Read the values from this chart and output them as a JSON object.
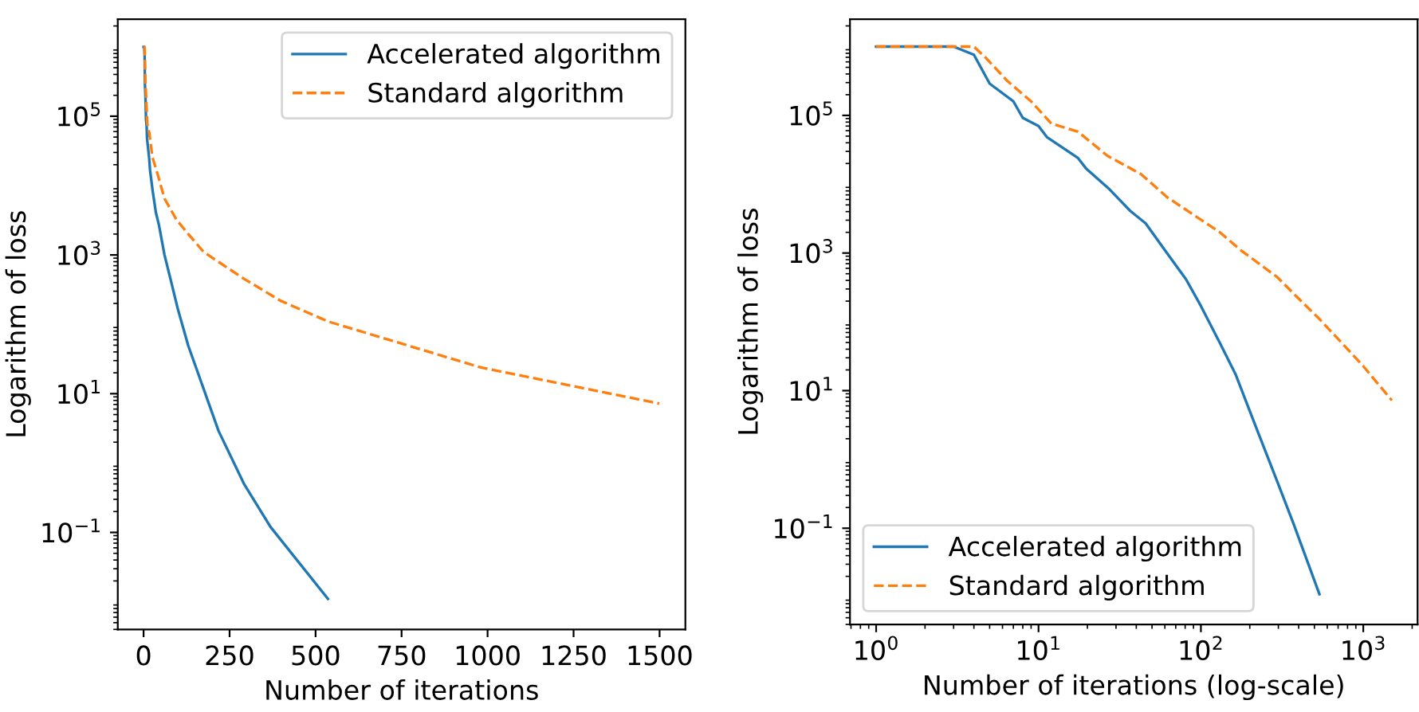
{
  "chart_data": [
    {
      "type": "line",
      "xlabel": "Number of iterations",
      "ylabel": "Logarithm of loss",
      "log": "y",
      "xlim": [
        -75,
        1575
      ],
      "ylim": [
        0.004,
        2500000.0
      ],
      "xticks": [
        0,
        250,
        500,
        750,
        1000,
        1250,
        1500
      ],
      "yticks": [
        {
          "value": 0.1,
          "label": "10$^{−1}$"
        },
        {
          "value": 10,
          "label": "10$^{1}$"
        },
        {
          "value": 1000,
          "label": "10$^{3}$"
        },
        {
          "value": 100000,
          "label": "10$^{5}$"
        }
      ],
      "legend": "top right",
      "grid": false,
      "series": [
        {
          "name": "Accelerated algorithm",
          "color": "#1f77b4",
          "line_style": "solid",
          "x": [
            0,
            1,
            2,
            3,
            4,
            6,
            7,
            9,
            10,
            16.5,
            18.6,
            26.4,
            35.7,
            44.7,
            60.8,
            80,
            99,
            130,
            163,
            218,
            293,
            369,
            536
          ],
          "values": [
            1000000,
            1000000,
            1000000,
            760000,
            290000,
            160000,
            92000,
            70000,
            48000,
            24000,
            17000,
            8400,
            4100,
            2700,
            1000,
            415,
            170,
            49,
            17,
            2.9,
            0.49,
            0.12,
            0.011
          ]
        },
        {
          "name": "Standard algorithm",
          "color": "#ff7f0e",
          "line_style": "dashed",
          "x": [
            0,
            1,
            2,
            3,
            3.7,
            5.4,
            8,
            11,
            16.5,
            25.5,
            41.8,
            60.8,
            96,
            130,
            175,
            293,
            397,
            536,
            979,
            1499
          ],
          "values": [
            1000000,
            1000000,
            1000000,
            1000000,
            700000,
            320000,
            160000,
            76000,
            58000,
            26000,
            14000,
            6500,
            3200,
            2000,
            1100,
            450,
            220,
            110,
            24,
            7.2
          ]
        }
      ]
    },
    {
      "type": "line",
      "xlabel": "Number of iterations (log-scale)",
      "ylabel": "Logarithm of loss",
      "log": "xy",
      "xlim": [
        0.69,
        2160
      ],
      "ylim": [
        0.004,
        2500000.0
      ],
      "xticks": [
        {
          "value": 1,
          "label": "10$^{0}$"
        },
        {
          "value": 10,
          "label": "10$^{1}$"
        },
        {
          "value": 100,
          "label": "10$^{2}$"
        },
        {
          "value": 1000,
          "label": "10$^{3}$"
        }
      ],
      "yticks": [
        {
          "value": 0.1,
          "label": "10$^{−1}$"
        },
        {
          "value": 10,
          "label": "10$^{1}$"
        },
        {
          "value": 1000,
          "label": "10$^{3}$"
        },
        {
          "value": 100000,
          "label": "10$^{5}$"
        }
      ],
      "legend": "bottom left",
      "grid": false,
      "series": [
        {
          "name": "Accelerated algorithm",
          "color": "#1f77b4",
          "line_style": "solid",
          "x": [
            1,
            2,
            3,
            4,
            5,
            7,
            8,
            10,
            11.3,
            17.5,
            19.6,
            27.4,
            36.7,
            45.7,
            61.8,
            81,
            100,
            131,
            164,
            219,
            294,
            370,
            537
          ],
          "values": [
            1000000,
            1000000,
            1000000,
            760000,
            290000,
            160000,
            92000,
            70000,
            48000,
            24000,
            17000,
            8400,
            4100,
            2700,
            1000,
            415,
            170,
            49,
            17,
            2.9,
            0.49,
            0.12,
            0.011
          ]
        },
        {
          "name": "Standard algorithm",
          "color": "#ff7f0e",
          "line_style": "dashed",
          "x": [
            1,
            2,
            3,
            4,
            4.7,
            6.4,
            9,
            12,
            17.5,
            26.5,
            42.8,
            61.8,
            97,
            131,
            176,
            294,
            398,
            537,
            980,
            1500
          ],
          "values": [
            1000000,
            1000000,
            1000000,
            1000000,
            700000,
            320000,
            160000,
            76000,
            58000,
            26000,
            14000,
            6500,
            3200,
            2000,
            1100,
            450,
            220,
            110,
            24,
            7.2
          ]
        }
      ]
    }
  ]
}
